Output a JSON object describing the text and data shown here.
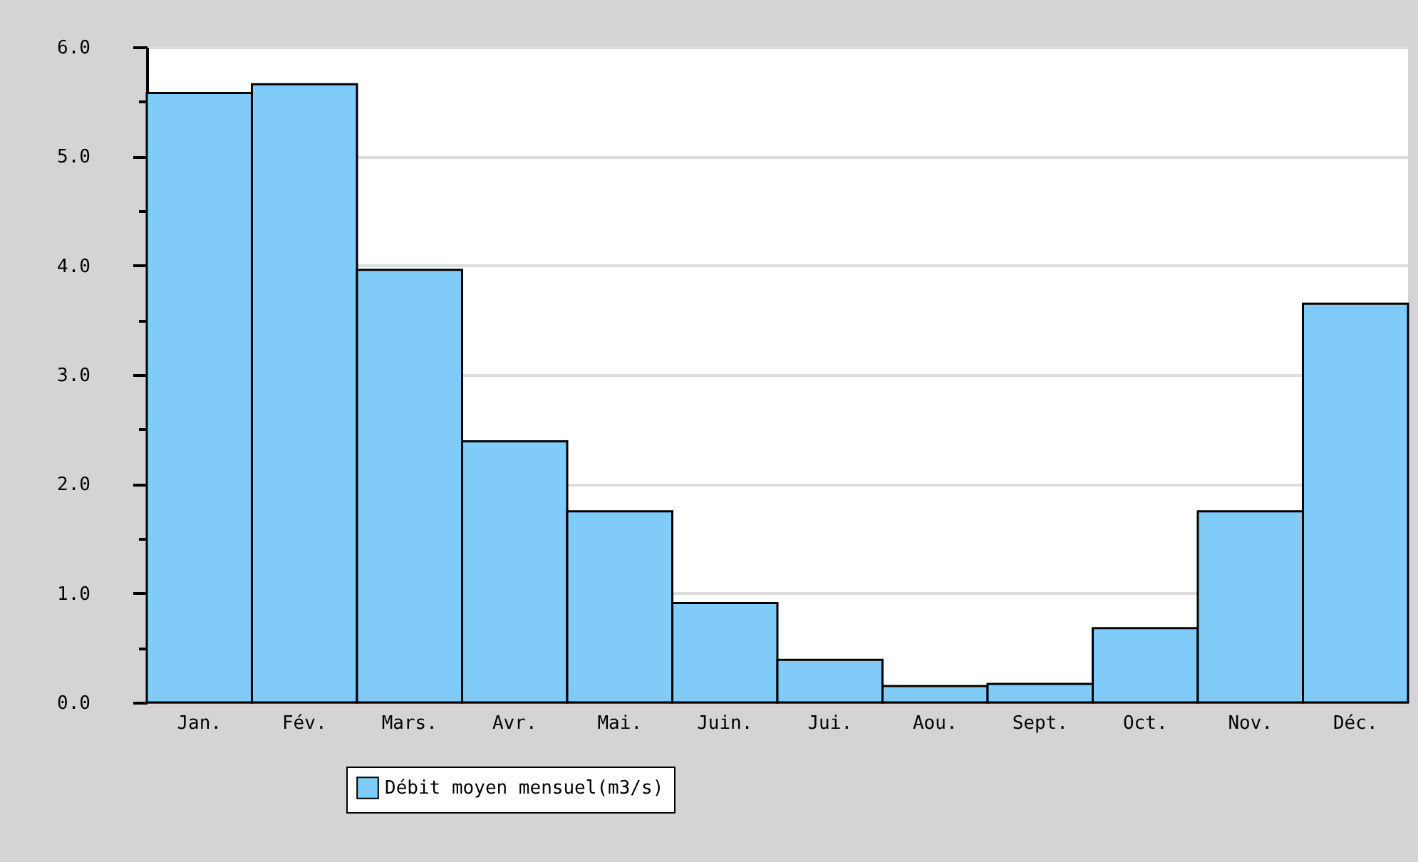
{
  "chart_data": {
    "type": "bar",
    "categories": [
      "Jan.",
      "Fév.",
      "Mars.",
      "Avr.",
      "Mai.",
      "Juin.",
      "Jui.",
      "Aou.",
      "Sept.",
      "Oct.",
      "Nov.",
      "Déc."
    ],
    "series": [
      {
        "name": "Débit moyen mensuel(m3/s)",
        "color": "#80cbf8",
        "values": [
          5.58,
          5.66,
          3.96,
          2.39,
          1.75,
          0.91,
          0.39,
          0.15,
          0.17,
          0.68,
          1.75,
          3.65
        ]
      }
    ],
    "ylim": [
      0,
      6
    ],
    "yticks": [
      {
        "value": 0,
        "label": "0.0"
      },
      {
        "value": 0.5,
        "label": null
      },
      {
        "value": 1,
        "label": "1.0"
      },
      {
        "value": 1.5,
        "label": null
      },
      {
        "value": 2,
        "label": "2.0"
      },
      {
        "value": 2.5,
        "label": null
      },
      {
        "value": 3,
        "label": "3.0"
      },
      {
        "value": 3.5,
        "label": null
      },
      {
        "value": 4,
        "label": "4.0"
      },
      {
        "value": 4.5,
        "label": null
      },
      {
        "value": 5,
        "label": "5.0"
      },
      {
        "value": 5.5,
        "label": null
      },
      {
        "value": 6,
        "label": "6.0"
      }
    ],
    "grid": "y",
    "legend": "bottom"
  }
}
